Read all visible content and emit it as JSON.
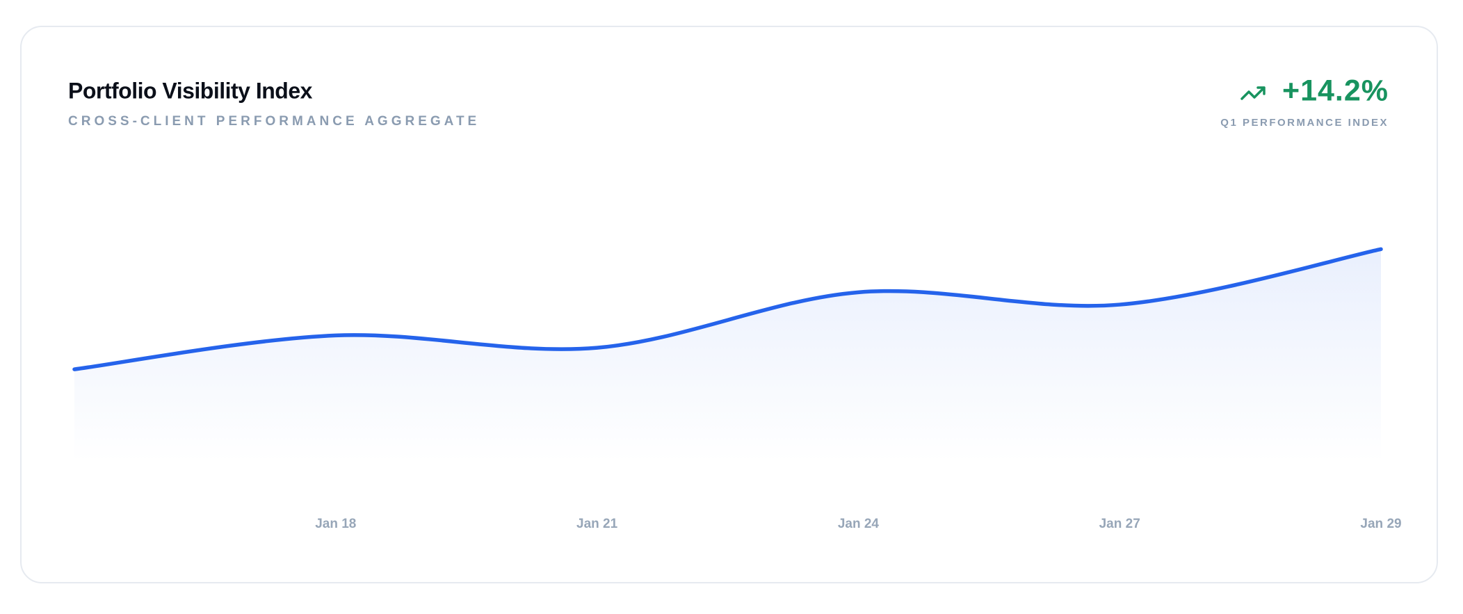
{
  "chart_data": {
    "type": "line",
    "title": "Portfolio Visibility Index",
    "subtitle": "CROSS-CLIENT PERFORMANCE AGGREGATE",
    "kpi": {
      "value": "+14.2%",
      "label": "Q1 PERFORMANCE INDEX"
    },
    "categories": [
      null,
      "Jan 18",
      "Jan 21",
      "Jan 24",
      "Jan 27",
      "Jan 29"
    ],
    "values": [
      30,
      41,
      37,
      55,
      51,
      69
    ],
    "color": "#2563eb",
    "ylim": [
      0,
      100
    ]
  }
}
